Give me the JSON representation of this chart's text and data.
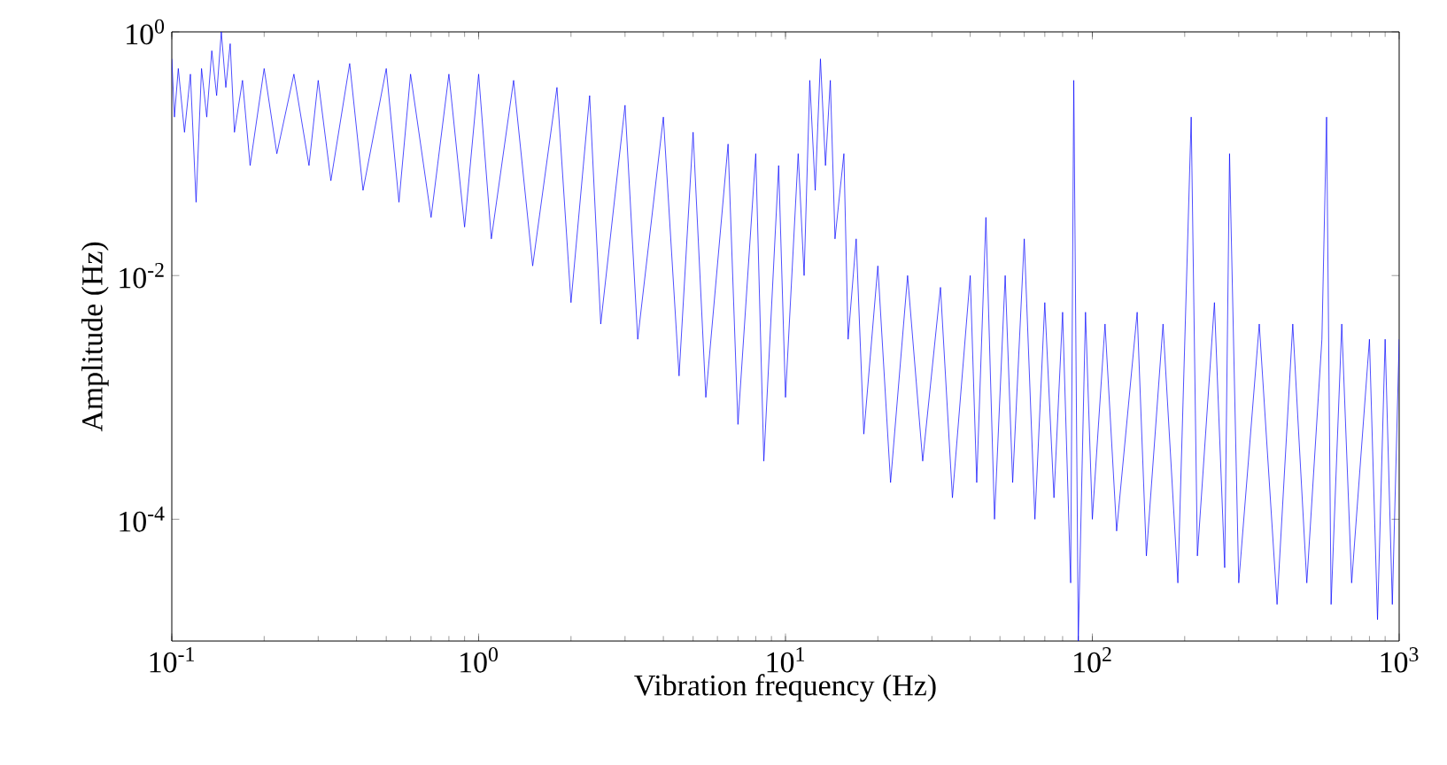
{
  "chart_data": {
    "type": "line",
    "xlabel": "Vibration frequency (Hz)",
    "ylabel": "Amplitude (Hz)",
    "log": "xy",
    "xlim": [
      0.1,
      1000
    ],
    "ylim": [
      1e-05,
      1
    ],
    "xticks": [
      {
        "value": 0.1,
        "label": "10$^{-1}$"
      },
      {
        "value": 1,
        "label": "10$^{0}$"
      },
      {
        "value": 10,
        "label": "10$^{1}$"
      },
      {
        "value": 100,
        "label": "10$^{2}$"
      },
      {
        "value": 1000,
        "label": "10$^{3}$"
      }
    ],
    "yticks": [
      {
        "value": 0.0001,
        "label": "10$^{-4}$"
      },
      {
        "value": 0.01,
        "label": "10$^{-2}$"
      },
      {
        "value": 1,
        "label": "10$^{0}$"
      }
    ],
    "series": [
      {
        "color": "#0000ff",
        "x": [
          0.1,
          0.102,
          0.105,
          0.11,
          0.115,
          0.12,
          0.125,
          0.13,
          0.135,
          0.14,
          0.145,
          0.15,
          0.155,
          0.16,
          0.17,
          0.18,
          0.2,
          0.22,
          0.25,
          0.28,
          0.3,
          0.33,
          0.38,
          0.42,
          0.5,
          0.55,
          0.6,
          0.7,
          0.8,
          0.9,
          1.0,
          1.1,
          1.3,
          1.5,
          1.8,
          2.0,
          2.3,
          2.5,
          3,
          3.3,
          4,
          4.5,
          5,
          5.5,
          6.5,
          7,
          8,
          8.5,
          9.5,
          10,
          11,
          11.5,
          12,
          12.5,
          13,
          13.5,
          14,
          14.5,
          15.5,
          16,
          17,
          18,
          20,
          22,
          25,
          28,
          32,
          35,
          40,
          42,
          45,
          48,
          52,
          55,
          60,
          65,
          70,
          75,
          80,
          85,
          87,
          90,
          95,
          100,
          110,
          120,
          140,
          150,
          170,
          190,
          210,
          220,
          250,
          270,
          280,
          300,
          350,
          400,
          450,
          500,
          560,
          580,
          600,
          650,
          700,
          800,
          850,
          900,
          950,
          1000
        ],
        "values": [
          0.6,
          0.2,
          0.5,
          0.15,
          0.45,
          0.04,
          0.5,
          0.2,
          0.7,
          0.3,
          1.0,
          0.35,
          0.8,
          0.15,
          0.4,
          0.08,
          0.5,
          0.1,
          0.45,
          0.08,
          0.4,
          0.06,
          0.55,
          0.05,
          0.5,
          0.04,
          0.45,
          0.03,
          0.45,
          0.025,
          0.45,
          0.02,
          0.4,
          0.012,
          0.35,
          0.006,
          0.3,
          0.004,
          0.25,
          0.003,
          0.2,
          0.0015,
          0.15,
          0.001,
          0.12,
          0.0006,
          0.1,
          0.0003,
          0.08,
          0.001,
          0.1,
          0.01,
          0.4,
          0.05,
          0.6,
          0.08,
          0.4,
          0.02,
          0.1,
          0.003,
          0.02,
          0.0005,
          0.012,
          0.0002,
          0.01,
          0.0003,
          0.008,
          0.00015,
          0.01,
          0.0002,
          0.03,
          0.0001,
          0.01,
          0.0002,
          0.02,
          0.0001,
          0.006,
          0.00015,
          0.005,
          3e-05,
          0.4,
          1e-05,
          0.005,
          0.0001,
          0.004,
          8e-05,
          0.005,
          5e-05,
          0.004,
          3e-05,
          0.2,
          5e-05,
          0.006,
          4e-05,
          0.1,
          3e-05,
          0.004,
          2e-05,
          0.004,
          3e-05,
          0.003,
          0.2,
          2e-05,
          0.004,
          3e-05,
          0.003,
          1.5e-05,
          0.003,
          2e-05,
          0.003
        ]
      }
    ]
  }
}
